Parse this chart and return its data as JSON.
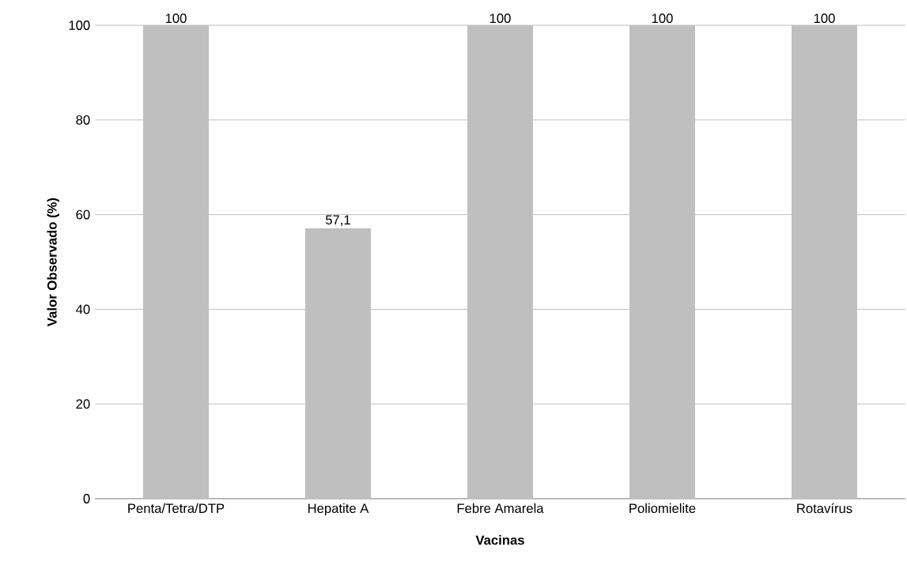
{
  "chart_data": {
    "type": "bar",
    "xlabel": "Vacinas",
    "ylabel": "Valor Observado (%)",
    "categories": [
      "Penta/Tetra/DTP",
      "Hepatite A",
      "Febre Amarela",
      "Poliomielite",
      "Rotavírus"
    ],
    "values": [
      100,
      57.1,
      100,
      100,
      100
    ],
    "value_labels": [
      "100",
      "57,1",
      "100",
      "100",
      "100"
    ],
    "color": "#bfbfbf",
    "ylim": [
      0,
      100
    ],
    "yticks": [
      0,
      20,
      40,
      60,
      80,
      100
    ],
    "grid": "y"
  }
}
